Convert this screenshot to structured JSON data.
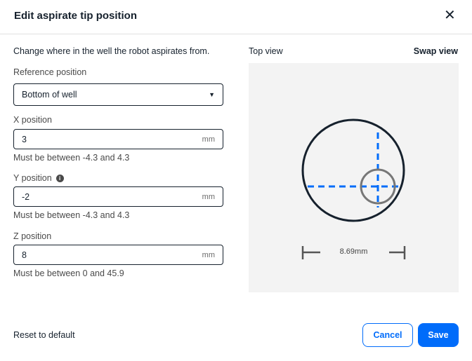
{
  "dialog": {
    "title": "Edit aspirate tip position",
    "close_icon": "close-icon"
  },
  "form": {
    "description": "Change where in the well the robot aspirates from.",
    "reference": {
      "label": "Reference position",
      "value": "Bottom of well"
    },
    "x": {
      "label": "X position",
      "value": "3",
      "unit": "mm",
      "help": "Must be between -4.3 and 4.3"
    },
    "y": {
      "label": "Y position",
      "value": "-2",
      "unit": "mm",
      "help": "Must be between -4.3 and 4.3",
      "info_icon": "i"
    },
    "z": {
      "label": "Z position",
      "value": "8",
      "unit": "mm",
      "help": "Must be between 0 and 45.9"
    }
  },
  "preview": {
    "view_label": "Top view",
    "swap_label": "Swap view",
    "diameter": "8.69mm",
    "accent": "#006cfa"
  },
  "footer": {
    "reset": "Reset to default",
    "cancel": "Cancel",
    "save": "Save"
  }
}
